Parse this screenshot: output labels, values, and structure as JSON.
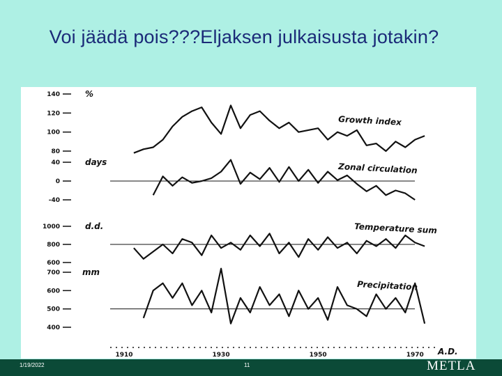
{
  "slide": {
    "title": "Voi jäädä pois???Eljaksen julkaisusta jotakin?",
    "footer_date": "1/19/2022",
    "page_number": "11",
    "logo_text": "METLA"
  },
  "colors": {
    "background": "#aef0e4",
    "title": "#1b2a78",
    "footer": "#0b4a37",
    "ink": "#111111"
  },
  "chart_data": [
    {
      "type": "line",
      "subplot_label": "Growth index",
      "unit": "%",
      "ticks": [
        "140",
        "120",
        "100",
        "80"
      ],
      "ylim": [
        80,
        140
      ],
      "x": [
        1912,
        1914,
        1916,
        1918,
        1920,
        1922,
        1924,
        1926,
        1928,
        1930,
        1932,
        1934,
        1936,
        1938,
        1940,
        1942,
        1944,
        1946,
        1948,
        1950,
        1952,
        1954,
        1956,
        1958,
        1960,
        1962,
        1964,
        1966,
        1968,
        1970,
        1972
      ],
      "values": [
        78,
        82,
        84,
        92,
        106,
        116,
        122,
        126,
        110,
        98,
        128,
        104,
        118,
        122,
        112,
        104,
        110,
        100,
        102,
        104,
        92,
        100,
        96,
        102,
        86,
        88,
        80,
        90,
        84,
        92,
        96
      ]
    },
    {
      "type": "line",
      "subplot_label": "Zonal circulation",
      "unit": "days",
      "ticks": [
        "40",
        "0",
        "-40"
      ],
      "ylim": [
        -40,
        40
      ],
      "x": [
        1916,
        1918,
        1920,
        1922,
        1924,
        1926,
        1928,
        1930,
        1932,
        1934,
        1936,
        1938,
        1940,
        1942,
        1944,
        1946,
        1948,
        1950,
        1952,
        1954,
        1956,
        1958,
        1960,
        1962,
        1964,
        1966,
        1968,
        1970
      ],
      "values": [
        -30,
        10,
        -10,
        8,
        -4,
        0,
        6,
        20,
        45,
        -6,
        18,
        4,
        28,
        -2,
        30,
        0,
        24,
        -4,
        20,
        2,
        12,
        -6,
        -22,
        -10,
        -30,
        -20,
        -26,
        -40
      ]
    },
    {
      "type": "line",
      "subplot_label": "Temperature sum",
      "unit": "d.d.",
      "ticks": [
        "1000",
        "800",
        "600"
      ],
      "ylim": [
        600,
        1000
      ],
      "x": [
        1912,
        1914,
        1916,
        1918,
        1920,
        1922,
        1924,
        1926,
        1928,
        1930,
        1932,
        1934,
        1936,
        1938,
        1940,
        1942,
        1944,
        1946,
        1948,
        1950,
        1952,
        1954,
        1956,
        1958,
        1960,
        1962,
        1964,
        1966,
        1968,
        1970,
        1972
      ],
      "values": [
        760,
        640,
        720,
        800,
        700,
        860,
        820,
        680,
        900,
        760,
        820,
        740,
        900,
        780,
        920,
        700,
        820,
        660,
        860,
        740,
        880,
        760,
        820,
        700,
        840,
        780,
        860,
        760,
        900,
        820,
        780
      ]
    },
    {
      "type": "line",
      "subplot_label": "Precipitation",
      "unit": "mm",
      "ticks": [
        "700",
        "600",
        "500",
        "400"
      ],
      "ylim": [
        400,
        700
      ],
      "x": [
        1914,
        1916,
        1918,
        1920,
        1922,
        1924,
        1926,
        1928,
        1930,
        1932,
        1934,
        1936,
        1938,
        1940,
        1942,
        1944,
        1946,
        1948,
        1950,
        1952,
        1954,
        1956,
        1958,
        1960,
        1962,
        1964,
        1966,
        1968,
        1970,
        1972
      ],
      "values": [
        450,
        600,
        640,
        560,
        640,
        520,
        600,
        480,
        720,
        420,
        560,
        480,
        620,
        520,
        580,
        460,
        600,
        500,
        560,
        440,
        620,
        520,
        500,
        460,
        580,
        500,
        560,
        480,
        640,
        420
      ]
    },
    {
      "type": "axis",
      "x_tick_labels": [
        "1910",
        "1930",
        "1950",
        "1970"
      ],
      "x_label": "A.D."
    }
  ]
}
